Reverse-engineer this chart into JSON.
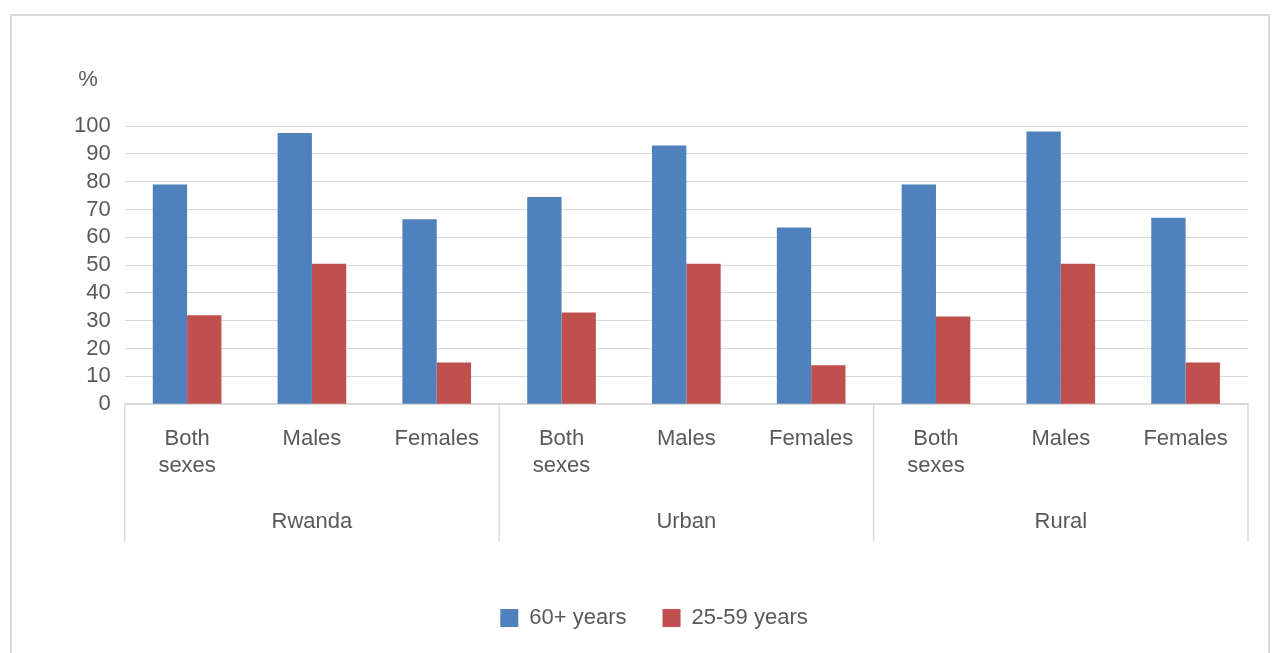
{
  "chart_data": {
    "type": "bar",
    "ylabel": "%",
    "categories": [
      "Both sexes",
      "Males",
      "Females",
      "Both sexes",
      "Males",
      "Females",
      "Both sexes",
      "Males",
      "Females"
    ],
    "annotations": [
      "Rwanda",
      "Urban",
      "Rural"
    ],
    "series": [
      {
        "name": "60+ years",
        "color": "#4f81bd",
        "values": [
          79,
          97.5,
          66.5,
          74.5,
          93,
          63.5,
          79,
          98,
          67
        ]
      },
      {
        "name": "25-59 years",
        "color": "#c0504d",
        "values": [
          32,
          50.5,
          15,
          33,
          50.5,
          14,
          31.5,
          50.5,
          15
        ]
      }
    ],
    "ylim": [
      0,
      100
    ],
    "yticks": [
      0,
      10,
      20,
      30,
      40,
      50,
      60,
      70,
      80,
      90,
      100
    ],
    "grid": "y",
    "legend": "bottom"
  }
}
